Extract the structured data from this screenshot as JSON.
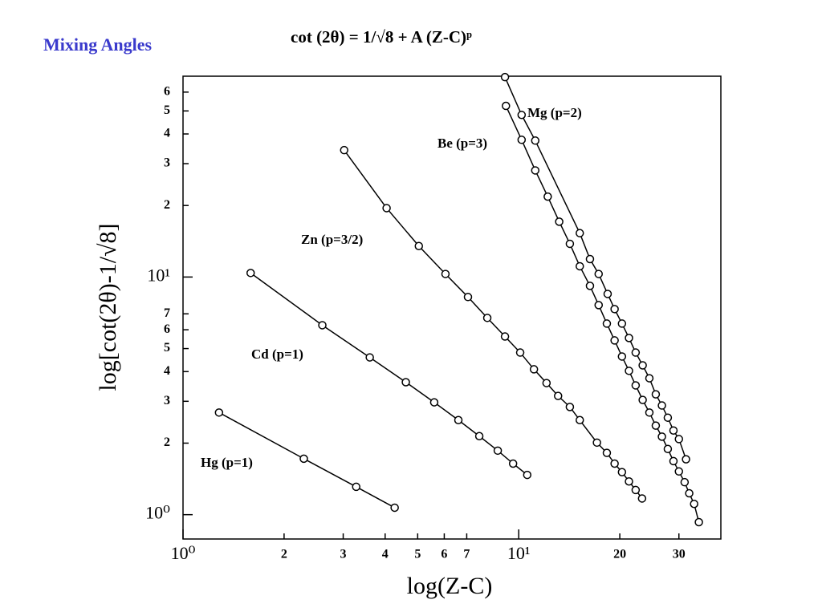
{
  "chart_data": {
    "type": "line",
    "title": "Mixing Angles",
    "subtitle": "cot (2θ) =  1/√8  +  A (Z-C)ᵖ",
    "x_label": "log(Z-C)",
    "y_label": "log[cot(2θ)-1/√8]",
    "log_x": true,
    "log_y": true,
    "xlim": [
      1,
      40
    ],
    "ylim": [
      0.79,
      70
    ],
    "xticks": [
      {
        "value": 1,
        "label": "10⁰"
      },
      2,
      3,
      4,
      5,
      6,
      7,
      {
        "value": 10,
        "label": "10¹"
      },
      20,
      30
    ],
    "yticks": [
      {
        "value": 1,
        "label": "10⁰"
      },
      2,
      3,
      4,
      5,
      6,
      7,
      {
        "value": 10,
        "label": "10¹"
      },
      {
        "value": 20,
        "label": "2"
      },
      {
        "value": 30,
        "label": "3"
      },
      {
        "value": 40,
        "label": "4"
      },
      {
        "value": 50,
        "label": "5"
      },
      {
        "value": 60,
        "label": "6"
      }
    ],
    "series": [
      {
        "name": "Hg (p=1)",
        "color": "#000000",
        "x": [
          1.28,
          2.29,
          3.28,
          4.27
        ],
        "values": [
          2.69,
          1.72,
          1.31,
          1.07
        ]
      },
      {
        "name": "Cd (p=1)",
        "color": "#000000",
        "x": [
          1.59,
          2.6,
          3.6,
          4.61,
          5.6,
          6.61,
          7.63,
          8.66,
          9.62,
          10.6
        ],
        "values": [
          10.4,
          6.27,
          4.59,
          3.61,
          2.97,
          2.5,
          2.14,
          1.86,
          1.64,
          1.47
        ]
      },
      {
        "name": "Zn (p=3/2)",
        "color": "#000000",
        "x": [
          3.02,
          4.04,
          5.04,
          6.05,
          7.06,
          8.06,
          9.1,
          10.1,
          11.1,
          12.1,
          13.1,
          14.2,
          15.2,
          17.1,
          18.3,
          19.3,
          20.3,
          21.3,
          22.3,
          23.3
        ],
        "values": [
          34.2,
          19.5,
          13.5,
          10.3,
          8.24,
          6.73,
          5.62,
          4.81,
          4.09,
          3.58,
          3.16,
          2.84,
          2.5,
          2.01,
          1.82,
          1.64,
          1.51,
          1.38,
          1.27,
          1.17
        ]
      },
      {
        "name": "Be (p=3)",
        "color": "#000000",
        "x": [
          9.16,
          10.2,
          11.2,
          12.2,
          13.2,
          14.2,
          15.2,
          16.3,
          17.3,
          18.3,
          19.3,
          20.3,
          21.3,
          22.3,
          23.4,
          24.5,
          25.6,
          26.7,
          27.8,
          28.9,
          30.0,
          31.2,
          32.2,
          33.3,
          34.4
        ],
        "values": [
          52.5,
          37.8,
          28.1,
          21.8,
          17.1,
          13.8,
          11.1,
          9.18,
          7.62,
          6.37,
          5.41,
          4.63,
          4.03,
          3.5,
          3.04,
          2.69,
          2.37,
          2.13,
          1.89,
          1.68,
          1.52,
          1.37,
          1.23,
          1.11,
          0.93
        ]
      },
      {
        "name": "Mg (p=2)",
        "color": "#000000",
        "x": [
          9.1,
          10.2,
          11.2,
          15.2,
          16.3,
          17.3,
          18.4,
          19.3,
          20.3,
          21.3,
          22.3,
          23.4,
          24.5,
          25.6,
          26.7,
          27.8,
          28.9,
          30.0,
          31.5
        ],
        "values": [
          69.4,
          48.1,
          37.5,
          15.3,
          11.9,
          10.3,
          8.49,
          7.33,
          6.37,
          5.54,
          4.81,
          4.25,
          3.75,
          3.21,
          2.88,
          2.56,
          2.26,
          2.08,
          1.71
        ]
      }
    ]
  }
}
